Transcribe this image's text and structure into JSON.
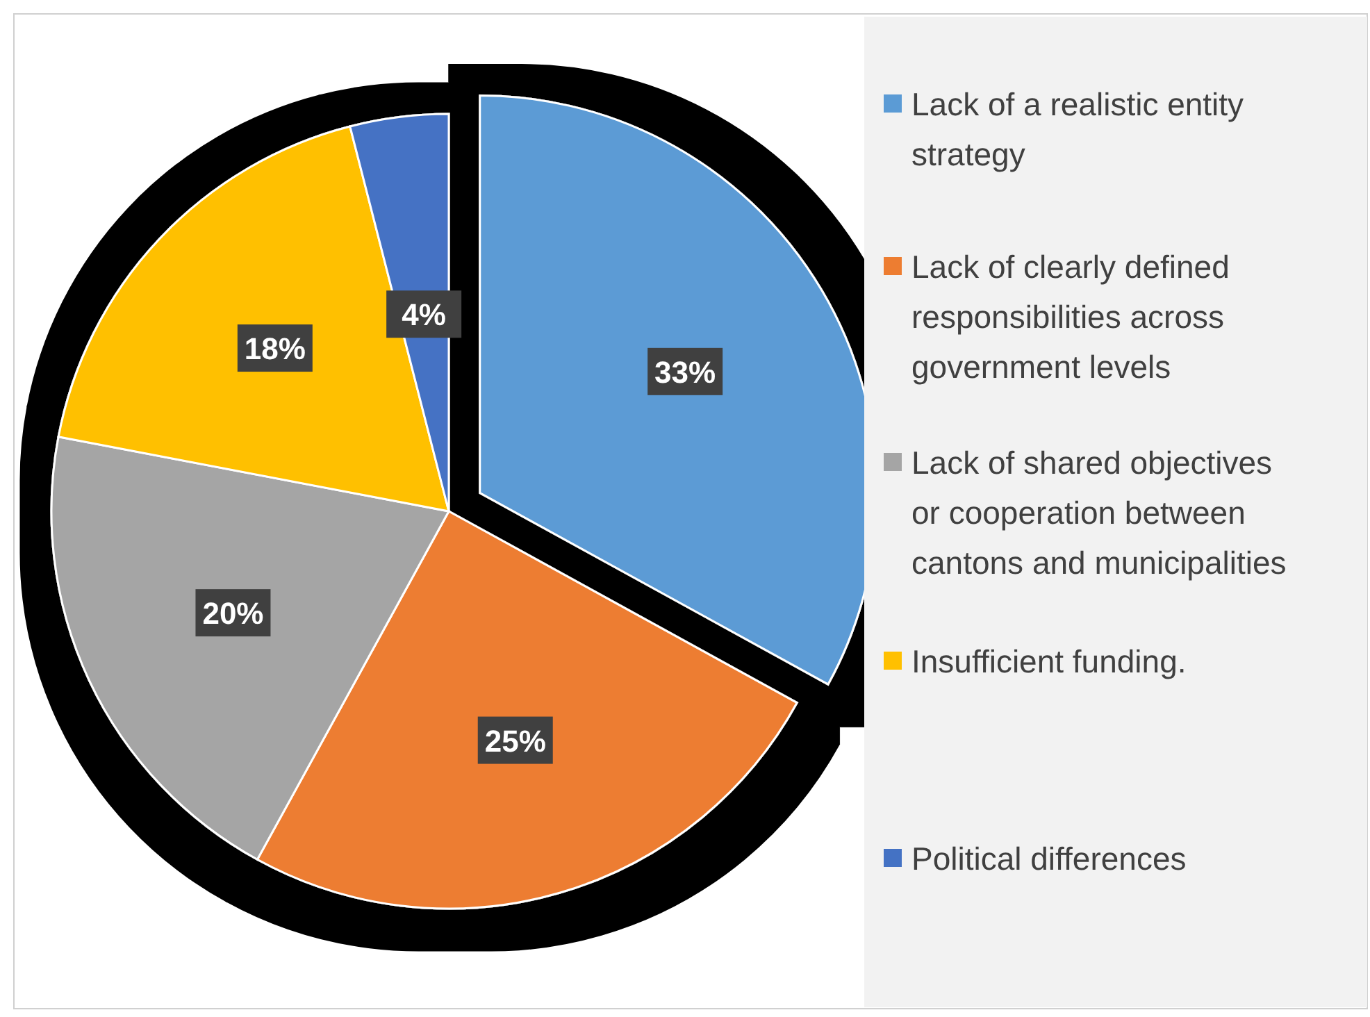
{
  "chart_data": {
    "type": "pie",
    "categories": [
      "Lack of a realistic entity strategy",
      "Lack of clearly defined responsibilities across government levels",
      "Lack of shared objectives or cooperation between cantons and municipalities",
      "Insufficient funding.",
      "Political differences"
    ],
    "values": [
      33,
      25,
      20,
      18,
      4
    ],
    "colors": [
      "#5b9bd5",
      "#ed7d31",
      "#a5a5a5",
      "#ffc000",
      "#4472c4"
    ],
    "value_labels": [
      "33%",
      "25%",
      "20%",
      "18%",
      "4%"
    ],
    "legend": "right"
  }
}
